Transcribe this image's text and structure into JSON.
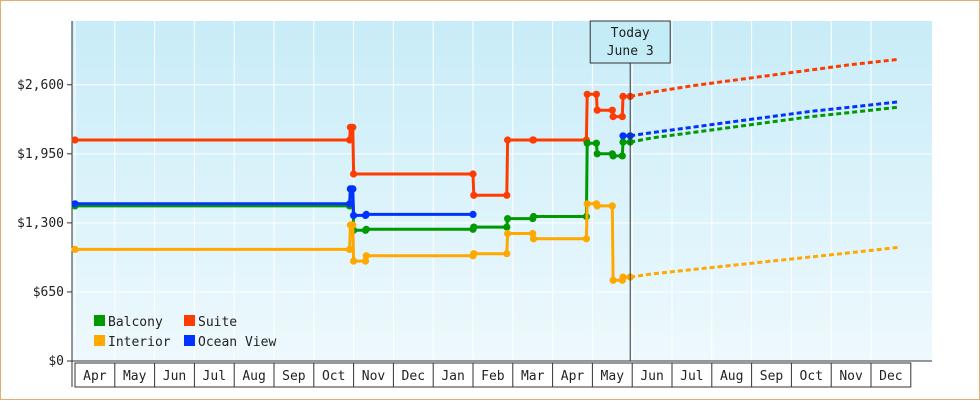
{
  "chart_data": {
    "type": "line",
    "title": "",
    "xlabel": "",
    "ylabel": "",
    "ylim": [
      0,
      3200
    ],
    "yticks": [
      {
        "value": 0,
        "label": "$0"
      },
      {
        "value": 650,
        "label": "$650"
      },
      {
        "value": 1300,
        "label": "$1,300"
      },
      {
        "value": 1950,
        "label": "$1,950"
      },
      {
        "value": 2600,
        "label": "$2,600"
      }
    ],
    "months": [
      "Apr",
      "May",
      "Jun",
      "Jul",
      "Aug",
      "Sep",
      "Oct",
      "Nov",
      "Dec",
      "Jan",
      "Feb",
      "Mar",
      "Apr",
      "May",
      "Jun",
      "Jul",
      "Aug",
      "Sep",
      "Oct",
      "Nov",
      "Dec"
    ],
    "grid": true,
    "legend_position": "bottom-left",
    "today": {
      "line1": "Today",
      "line2": "June 3",
      "x": 13.95
    },
    "series": [
      {
        "name": "Suite",
        "color": "#ff3c00",
        "points": [
          [
            0,
            2080
          ],
          [
            6.9,
            2080
          ],
          [
            6.92,
            2200
          ],
          [
            6.98,
            2200
          ],
          [
            7.0,
            1760
          ],
          [
            10.0,
            1760
          ],
          [
            10.02,
            1560
          ],
          [
            10.85,
            1560
          ],
          [
            10.87,
            2080
          ],
          [
            11.5,
            2080
          ],
          [
            11.52,
            2080
          ],
          [
            12.85,
            2080
          ],
          [
            12.87,
            2510
          ],
          [
            13.1,
            2510
          ],
          [
            13.12,
            2360
          ],
          [
            13.5,
            2360
          ],
          [
            13.52,
            2300
          ],
          [
            13.75,
            2300
          ],
          [
            13.77,
            2490
          ],
          [
            13.95,
            2490
          ]
        ],
        "forecast": [
          [
            13.95,
            2490
          ],
          [
            14.5,
            2530
          ],
          [
            15.5,
            2590
          ],
          [
            16.5,
            2640
          ],
          [
            17.5,
            2690
          ],
          [
            18.5,
            2740
          ],
          [
            19.5,
            2790
          ],
          [
            20.7,
            2840
          ]
        ]
      },
      {
        "name": "Balcony",
        "color": "#009900",
        "points": [
          [
            0,
            1460
          ],
          [
            6.9,
            1460
          ],
          [
            6.92,
            1620
          ],
          [
            6.98,
            1620
          ],
          [
            7.0,
            1230
          ],
          [
            7.3,
            1230
          ],
          [
            7.32,
            1240
          ],
          [
            10.0,
            1240
          ],
          [
            10.02,
            1260
          ],
          [
            10.85,
            1260
          ],
          [
            10.87,
            1340
          ],
          [
            11.5,
            1340
          ],
          [
            11.52,
            1360
          ],
          [
            12.85,
            1360
          ],
          [
            12.87,
            2050
          ],
          [
            13.1,
            2050
          ],
          [
            13.12,
            1950
          ],
          [
            13.5,
            1950
          ],
          [
            13.52,
            1930
          ],
          [
            13.75,
            1930
          ],
          [
            13.77,
            2060
          ],
          [
            13.95,
            2060
          ]
        ],
        "forecast": [
          [
            13.95,
            2060
          ],
          [
            14.5,
            2100
          ],
          [
            15.5,
            2150
          ],
          [
            16.5,
            2200
          ],
          [
            17.5,
            2250
          ],
          [
            18.5,
            2300
          ],
          [
            19.5,
            2340
          ],
          [
            20.7,
            2390
          ]
        ]
      },
      {
        "name": "Interior",
        "color": "#ffa800",
        "points": [
          [
            0,
            1050
          ],
          [
            6.9,
            1050
          ],
          [
            6.92,
            1280
          ],
          [
            6.98,
            1280
          ],
          [
            7.0,
            940
          ],
          [
            7.3,
            940
          ],
          [
            7.32,
            990
          ],
          [
            10.0,
            990
          ],
          [
            10.02,
            1010
          ],
          [
            10.85,
            1010
          ],
          [
            10.87,
            1200
          ],
          [
            11.5,
            1200
          ],
          [
            11.52,
            1150
          ],
          [
            12.85,
            1150
          ],
          [
            12.87,
            1480
          ],
          [
            13.1,
            1480
          ],
          [
            13.12,
            1460
          ],
          [
            13.5,
            1460
          ],
          [
            13.52,
            760
          ],
          [
            13.75,
            760
          ],
          [
            13.77,
            790
          ],
          [
            13.95,
            790
          ]
        ],
        "forecast": [
          [
            13.95,
            790
          ],
          [
            14.5,
            820
          ],
          [
            15.5,
            860
          ],
          [
            16.5,
            900
          ],
          [
            17.5,
            940
          ],
          [
            18.5,
            980
          ],
          [
            19.5,
            1020
          ],
          [
            20.7,
            1070
          ]
        ]
      },
      {
        "name": "Ocean View",
        "color": "#0033ff",
        "points": [
          [
            0,
            1480
          ],
          [
            6.9,
            1480
          ],
          [
            6.92,
            1620
          ],
          [
            6.98,
            1620
          ],
          [
            7.0,
            1370
          ],
          [
            7.3,
            1370
          ],
          [
            7.32,
            1380
          ],
          [
            10.0,
            1380
          ],
          [
            13.77,
            2120
          ],
          [
            13.95,
            2120
          ]
        ],
        "forecast": [
          [
            13.95,
            2120
          ],
          [
            14.5,
            2150
          ],
          [
            15.5,
            2200
          ],
          [
            16.5,
            2250
          ],
          [
            17.5,
            2300
          ],
          [
            18.5,
            2350
          ],
          [
            19.5,
            2390
          ],
          [
            20.7,
            2440
          ]
        ],
        "gap_after_index": 7
      }
    ]
  },
  "legend": {
    "items": [
      {
        "name": "Balcony",
        "color": "#009900"
      },
      {
        "name": "Suite",
        "color": "#ff3c00"
      },
      {
        "name": "Interior",
        "color": "#ffa800"
      },
      {
        "name": "Ocean View",
        "color": "#0033ff"
      }
    ]
  }
}
